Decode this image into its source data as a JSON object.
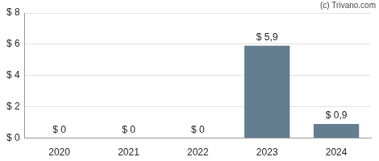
{
  "chart_data": {
    "type": "bar",
    "categories": [
      "2020",
      "2021",
      "2022",
      "2023",
      "2024"
    ],
    "values": [
      0,
      0,
      0,
      5.9,
      0.9
    ],
    "value_labels": [
      "$ 0",
      "$ 0",
      "$ 0",
      "$ 5,9",
      "$ 0,9"
    ],
    "data_labels": true,
    "color": "#637d91",
    "ylim": [
      0,
      8
    ],
    "yticks": [
      {
        "value": 0,
        "label": "$ 0"
      },
      {
        "value": 2,
        "label": "$ 2"
      },
      {
        "value": 4,
        "label": "$ 4"
      },
      {
        "value": 6,
        "label": "$ 6"
      },
      {
        "value": 8,
        "label": "$ 8"
      }
    ],
    "grid": true,
    "annotations": [
      "(c) Trivano.com"
    ]
  }
}
